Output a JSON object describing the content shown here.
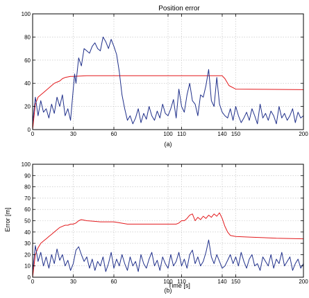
{
  "chart_data": [
    {
      "id": "a",
      "type": "line",
      "title": "Position error",
      "caption": "(a)",
      "xlabel": "",
      "ylabel": "",
      "xlim": [
        0,
        200
      ],
      "ylim": [
        0,
        100
      ],
      "xticks": [
        0,
        30,
        60,
        100,
        110,
        140,
        150,
        200
      ],
      "xtick_labels": [
        "0",
        "30",
        "60",
        "100",
        "110",
        "140",
        "150",
        "200"
      ],
      "yticks": [
        0,
        20,
        40,
        60,
        80,
        100
      ],
      "grid": true,
      "series": [
        {
          "color": "#e3191c",
          "x": [
            0,
            2,
            4,
            6,
            8,
            10,
            12,
            14,
            16,
            18,
            20,
            22,
            24,
            26,
            28,
            30,
            35,
            40,
            50,
            60,
            80,
            100,
            120,
            138,
            140,
            142,
            145,
            150,
            170,
            200
          ],
          "y": [
            0,
            22,
            28,
            30,
            32,
            34,
            36,
            38,
            40,
            41,
            42,
            44,
            45,
            45.5,
            46,
            46,
            46.3,
            46.5,
            46.5,
            46.5,
            46.5,
            46.5,
            46.5,
            46.5,
            46.5,
            44,
            38,
            35,
            34.8,
            34.5
          ]
        },
        {
          "color": "#1f2f8a",
          "x": [
            0,
            2,
            4,
            6,
            8,
            10,
            12,
            14,
            16,
            18,
            20,
            22,
            24,
            26,
            28,
            30,
            31,
            32,
            34,
            36,
            38,
            40,
            42,
            44,
            46,
            48,
            50,
            52,
            54,
            56,
            58,
            60,
            62,
            64,
            66,
            68,
            70,
            72,
            74,
            76,
            78,
            80,
            82,
            84,
            86,
            88,
            90,
            92,
            94,
            96,
            98,
            100,
            102,
            104,
            106,
            108,
            110,
            112,
            114,
            116,
            118,
            120,
            122,
            124,
            126,
            128,
            130,
            132,
            134,
            136,
            138,
            140,
            142,
            144,
            146,
            148,
            150,
            152,
            154,
            156,
            158,
            160,
            162,
            164,
            166,
            168,
            170,
            172,
            174,
            176,
            178,
            180,
            182,
            184,
            186,
            188,
            190,
            192,
            194,
            196,
            198,
            200
          ],
          "y": [
            5,
            28,
            12,
            25,
            15,
            18,
            10,
            22,
            14,
            28,
            20,
            30,
            12,
            18,
            8,
            35,
            48,
            40,
            62,
            55,
            70,
            68,
            66,
            72,
            75,
            70,
            68,
            80,
            76,
            70,
            78,
            72,
            65,
            50,
            30,
            18,
            8,
            12,
            5,
            10,
            18,
            6,
            14,
            9,
            20,
            12,
            8,
            16,
            10,
            22,
            14,
            12,
            18,
            26,
            10,
            35,
            20,
            15,
            30,
            40,
            25,
            22,
            12,
            30,
            28,
            38,
            52,
            25,
            20,
            45,
            22,
            15,
            12,
            10,
            18,
            8,
            20,
            12,
            6,
            10,
            15,
            8,
            18,
            12,
            5,
            22,
            10,
            14,
            8,
            16,
            12,
            5,
            20,
            10,
            14,
            8,
            12,
            18,
            6,
            15,
            10,
            12
          ]
        }
      ]
    },
    {
      "id": "b",
      "type": "line",
      "title": "",
      "caption": "(b)",
      "xlabel": "Time [s]",
      "ylabel": "Error [m]",
      "xlim": [
        0,
        200
      ],
      "ylim": [
        0,
        100
      ],
      "xticks": [
        0,
        30,
        60,
        100,
        110,
        140,
        150,
        200
      ],
      "xtick_labels": [
        "0",
        "30",
        "60",
        "100",
        "110",
        "140",
        "150",
        "200"
      ],
      "yticks": [
        0,
        10,
        20,
        30,
        40,
        50,
        60,
        70,
        80,
        90,
        100
      ],
      "grid": true,
      "series": [
        {
          "color": "#e3191c",
          "x": [
            0,
            2,
            4,
            6,
            8,
            10,
            12,
            14,
            16,
            18,
            20,
            22,
            24,
            26,
            28,
            30,
            32,
            34,
            36,
            40,
            45,
            50,
            60,
            70,
            80,
            90,
            100,
            106,
            108,
            110,
            112,
            114,
            116,
            118,
            120,
            122,
            124,
            126,
            128,
            130,
            132,
            134,
            136,
            138,
            140,
            142,
            144,
            146,
            150,
            160,
            170,
            180,
            200
          ],
          "y": [
            0,
            20,
            26,
            30,
            32,
            34,
            36,
            38,
            40,
            42,
            44,
            45,
            46,
            46,
            47,
            47,
            48,
            50,
            51,
            50,
            49.5,
            49,
            49,
            47,
            47,
            47,
            47,
            47,
            48,
            50,
            50,
            52,
            55,
            56,
            50,
            53,
            51,
            54,
            52,
            55,
            53,
            56,
            54,
            57,
            52,
            45,
            40,
            37,
            36,
            35.5,
            35,
            34.5,
            34
          ]
        },
        {
          "color": "#1f2f8a",
          "x": [
            0,
            2,
            4,
            6,
            8,
            10,
            12,
            14,
            16,
            18,
            20,
            22,
            24,
            26,
            28,
            30,
            32,
            34,
            36,
            38,
            40,
            42,
            44,
            46,
            48,
            50,
            52,
            54,
            56,
            58,
            60,
            62,
            64,
            66,
            68,
            70,
            72,
            74,
            76,
            78,
            80,
            82,
            84,
            86,
            88,
            90,
            92,
            94,
            96,
            98,
            100,
            102,
            104,
            106,
            108,
            110,
            112,
            114,
            116,
            118,
            120,
            122,
            124,
            126,
            128,
            130,
            132,
            134,
            136,
            138,
            140,
            142,
            144,
            146,
            148,
            150,
            152,
            154,
            156,
            158,
            160,
            162,
            164,
            166,
            168,
            170,
            172,
            174,
            176,
            178,
            180,
            182,
            184,
            186,
            188,
            190,
            192,
            194,
            196,
            198,
            200
          ],
          "y": [
            5,
            28,
            14,
            22,
            10,
            18,
            8,
            20,
            12,
            25,
            15,
            20,
            10,
            15,
            6,
            12,
            24,
            27,
            20,
            14,
            18,
            8,
            16,
            6,
            14,
            10,
            18,
            5,
            12,
            22,
            8,
            16,
            10,
            20,
            12,
            6,
            18,
            10,
            14,
            5,
            20,
            12,
            8,
            16,
            22,
            10,
            15,
            6,
            18,
            12,
            8,
            20,
            10,
            14,
            22,
            10,
            16,
            8,
            20,
            24,
            12,
            18,
            10,
            14,
            22,
            33,
            18,
            12,
            20,
            14,
            8,
            10,
            15,
            20,
            12,
            18,
            10,
            22,
            14,
            8,
            16,
            20,
            10,
            12,
            6,
            18,
            14,
            10,
            20,
            8,
            16,
            12,
            22,
            10,
            14,
            18,
            6,
            12,
            16,
            8,
            12
          ]
        }
      ]
    }
  ]
}
